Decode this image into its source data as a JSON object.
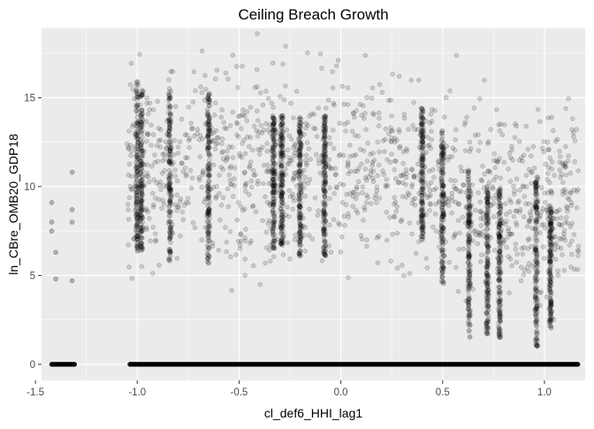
{
  "chart_data": {
    "type": "scatter",
    "title": "Ceiling Breach Growth",
    "xlabel": "cl_def6_HHI_lag1",
    "ylabel": "ln_CBre_OMB20_GDP18",
    "xlim": [
      -1.47,
      1.2
    ],
    "ylim": [
      -0.9,
      18.9
    ],
    "x_ticks": [
      -1.5,
      -1.0,
      -0.5,
      0.0,
      0.5,
      1.0
    ],
    "x_tick_labels": [
      "-1.5",
      "-1.0",
      "-0.5",
      "0.0",
      "0.5",
      "1.0"
    ],
    "y_ticks": [
      0,
      5,
      10,
      15
    ],
    "y_tick_labels": [
      "0",
      "5",
      "10",
      "15"
    ],
    "grid": true,
    "legend": "none",
    "point_color": "#000000",
    "point_alpha": 0.15,
    "panel_color": "#ebebeb",
    "baseline_y": 0,
    "baseline_x_range": [
      -1.42,
      1.17
    ],
    "columns": [
      {
        "x": -1.0,
        "y_min": 6.3,
        "y_max": 16.0
      },
      {
        "x": -0.98,
        "y_min": 6.3,
        "y_max": 15.5
      },
      {
        "x": -0.84,
        "y_min": 5.7,
        "y_max": 15.5
      },
      {
        "x": -0.65,
        "y_min": 5.5,
        "y_max": 15.3
      },
      {
        "x": -0.33,
        "y_min": 6.5,
        "y_max": 14.0
      },
      {
        "x": -0.29,
        "y_min": 6.7,
        "y_max": 14.0
      },
      {
        "x": -0.2,
        "y_min": 6.0,
        "y_max": 14.0
      },
      {
        "x": -0.08,
        "y_min": 6.0,
        "y_max": 14.0
      },
      {
        "x": 0.4,
        "y_min": 7.0,
        "y_max": 14.5
      },
      {
        "x": 0.5,
        "y_min": 4.5,
        "y_max": 13.0
      },
      {
        "x": 0.63,
        "y_min": 1.5,
        "y_max": 11.0
      },
      {
        "x": 0.72,
        "y_min": 1.7,
        "y_max": 10.0
      },
      {
        "x": 0.78,
        "y_min": 1.5,
        "y_max": 10.0
      },
      {
        "x": 0.96,
        "y_min": 1.0,
        "y_max": 10.5
      },
      {
        "x": 1.03,
        "y_min": 2.0,
        "y_max": 9.0
      }
    ],
    "scatter_cloud": {
      "x_range": [
        -1.05,
        1.17
      ],
      "y_range": [
        2.0,
        18.9
      ]
    },
    "outlier_points": [
      {
        "x": -1.42,
        "y": 9.1
      },
      {
        "x": -1.42,
        "y": 8.0
      },
      {
        "x": -1.42,
        "y": 7.5
      },
      {
        "x": -1.4,
        "y": 6.3
      },
      {
        "x": -1.4,
        "y": 4.8
      },
      {
        "x": -1.32,
        "y": 10.8
      },
      {
        "x": -1.32,
        "y": 8.7
      },
      {
        "x": -1.32,
        "y": 8.0
      },
      {
        "x": -1.32,
        "y": 4.7
      }
    ]
  }
}
